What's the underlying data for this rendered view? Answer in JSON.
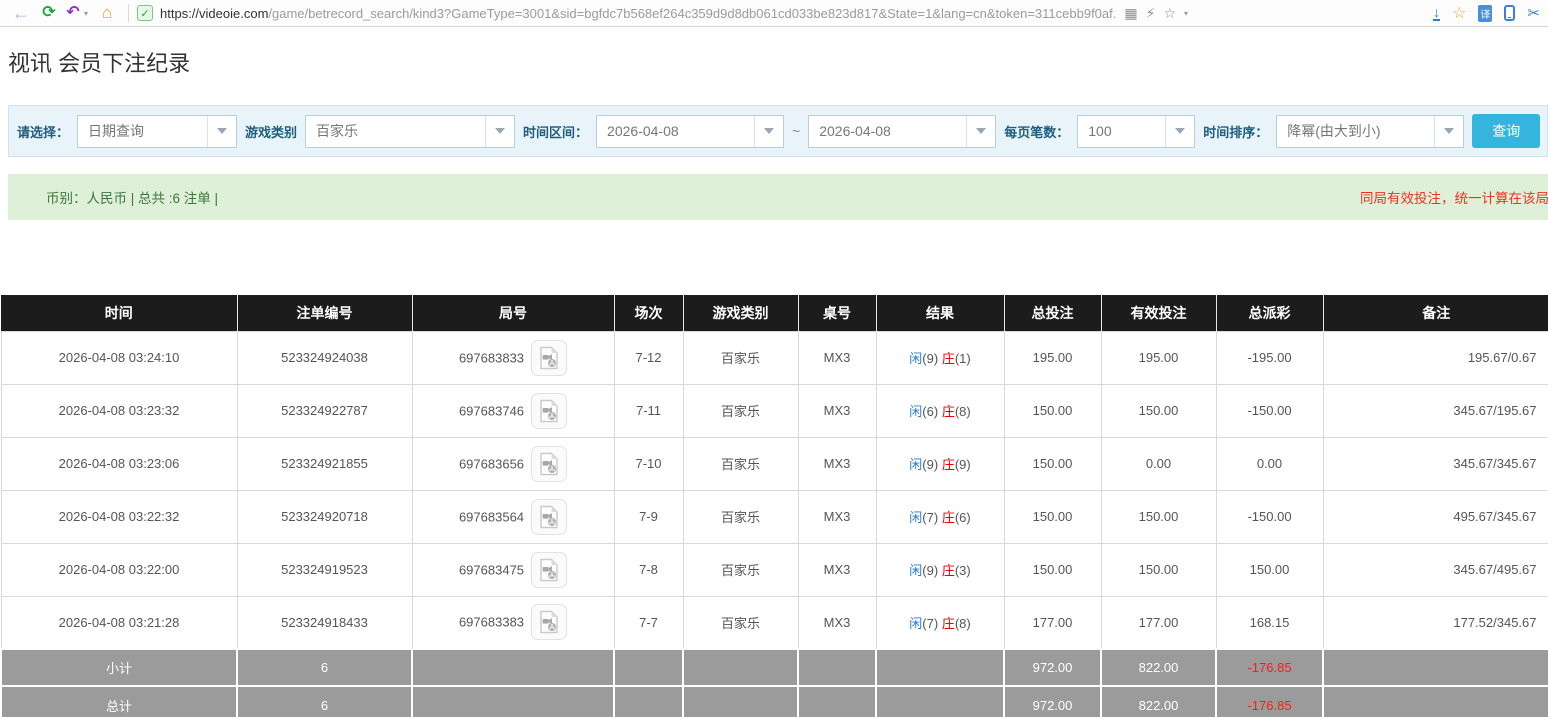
{
  "browser": {
    "icons": {
      "back": "←",
      "refresh": "⟳",
      "undo": "↶",
      "caret": "▾",
      "home": "⌂",
      "shield_check": "✓",
      "qr": "▦",
      "lightning": "⚡",
      "star_gray": "☆",
      "download": "↓",
      "star_orange": "☆",
      "translate": "译",
      "scissors": "✂"
    },
    "url_main": "https://videoie.com",
    "url_path": "/game/betrecord_search/kind3?GameType=3001&sid=bgfdc7b568ef264c359d9d8db061cd033be823d817&State=1&lang=cn&token=311cebb9f0af."
  },
  "page": {
    "title": "视讯 会员下注纪录"
  },
  "filters": {
    "select_label": "请选择：",
    "select_value": "日期查询",
    "game_type_label": "游戏类别",
    "game_type_value": "百家乐",
    "time_range_label": "时间区间：",
    "date_from": "2026-04-08",
    "date_separator": "~",
    "date_to": "2026-04-08",
    "per_page_label": "每页笔数：",
    "per_page_value": "100",
    "sort_label": "时间排序：",
    "sort_value": "降幂(由大到小)",
    "search_button": "查询"
  },
  "summary": {
    "left_text": "币别：人民币 | 总共 :6 注单 |",
    "right_text": "同局有效投注，统一计算在该局"
  },
  "colors": {
    "accent_cyan": "#33b5dd",
    "link_blue": "#2a7bd2",
    "loss_red": "#e60000",
    "success_green_bg": "#dff0d8",
    "success_green_text": "#3c763d",
    "header_black": "#1c1c1c",
    "footer_gray": "#9b9b9b"
  },
  "table": {
    "headers": [
      "时间",
      "注单编号",
      "局号",
      "场次",
      "游戏类别",
      "桌号",
      "结果",
      "总投注",
      "有效投注",
      "总派彩",
      "备注"
    ],
    "rows": [
      {
        "time": "2026-04-08 03:24:10",
        "bet_id": "523324924038",
        "round_id": "697683833",
        "session": "7-12",
        "game": "百家乐",
        "table_no": "MX3",
        "result": {
          "player_label": "闲",
          "player_value": "(9)",
          "banker_label": "庄",
          "banker_value": "(1)"
        },
        "total_bet": "195.00",
        "valid_bet": "195.00",
        "payout": "-195.00",
        "remark": "195.67/0.67"
      },
      {
        "time": "2026-04-08 03:23:32",
        "bet_id": "523324922787",
        "round_id": "697683746",
        "session": "7-11",
        "game": "百家乐",
        "table_no": "MX3",
        "result": {
          "player_label": "闲",
          "player_value": "(6)",
          "banker_label": "庄",
          "banker_value": "(8)"
        },
        "total_bet": "150.00",
        "valid_bet": "150.00",
        "payout": "-150.00",
        "remark": "345.67/195.67"
      },
      {
        "time": "2026-04-08 03:23:06",
        "bet_id": "523324921855",
        "round_id": "697683656",
        "session": "7-10",
        "game": "百家乐",
        "table_no": "MX3",
        "result": {
          "player_label": "闲",
          "player_value": "(9)",
          "banker_label": "庄",
          "banker_value": "(9)"
        },
        "total_bet": "150.00",
        "valid_bet": "0.00",
        "payout": "0.00",
        "remark": "345.67/345.67"
      },
      {
        "time": "2026-04-08 03:22:32",
        "bet_id": "523324920718",
        "round_id": "697683564",
        "session": "7-9",
        "game": "百家乐",
        "table_no": "MX3",
        "result": {
          "player_label": "闲",
          "player_value": "(7)",
          "banker_label": "庄",
          "banker_value": "(6)"
        },
        "total_bet": "150.00",
        "valid_bet": "150.00",
        "payout": "-150.00",
        "remark": "495.67/345.67"
      },
      {
        "time": "2026-04-08 03:22:00",
        "bet_id": "523324919523",
        "round_id": "697683475",
        "session": "7-8",
        "game": "百家乐",
        "table_no": "MX3",
        "result": {
          "player_label": "闲",
          "player_value": "(9)",
          "banker_label": "庄",
          "banker_value": "(3)"
        },
        "total_bet": "150.00",
        "valid_bet": "150.00",
        "payout": "150.00",
        "remark": "345.67/495.67"
      },
      {
        "time": "2026-04-08 03:21:28",
        "bet_id": "523324918433",
        "round_id": "697683383",
        "session": "7-7",
        "game": "百家乐",
        "table_no": "MX3",
        "result": {
          "player_label": "闲",
          "player_value": "(7)",
          "banker_label": "庄",
          "banker_value": "(8)"
        },
        "total_bet": "177.00",
        "valid_bet": "177.00",
        "payout": "168.15",
        "remark": "177.52/345.67"
      }
    ],
    "footer": [
      {
        "label": "小计",
        "count": "6",
        "total_bet": "972.00",
        "valid_bet": "822.00",
        "payout": "-176.85"
      },
      {
        "label": "总计",
        "count": "6",
        "total_bet": "972.00",
        "valid_bet": "822.00",
        "payout": "-176.85"
      }
    ]
  }
}
